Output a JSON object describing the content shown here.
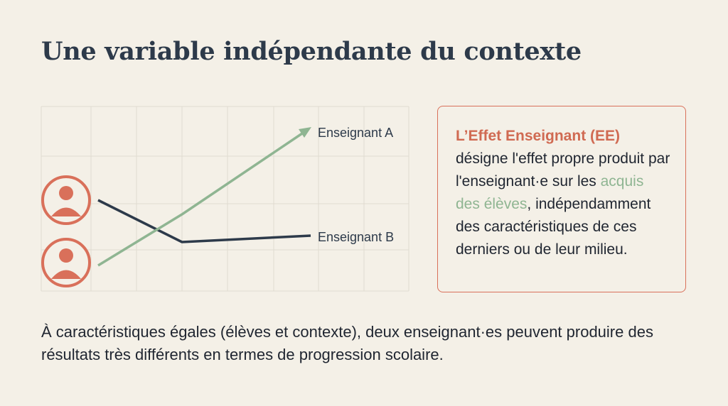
{
  "title": "Une variable indépendante du contexte",
  "diagram": {
    "labels": [
      "Enseignant A",
      "Enseignant B"
    ]
  },
  "definition": {
    "term": "L’Effet Enseignant (EE)",
    "text_before": "désigne l'effet propre produit par l'enseignant·e sur les ",
    "highlight": "acquis des élèves",
    "text_after": ", indépendamment des caractéristiques de ces derniers ou de leur milieu."
  },
  "footer": "À caractéristiques égales (élèves et contexte), deux enseignant·es peuvent produire des résultats très différents en termes de progression scolaire."
}
